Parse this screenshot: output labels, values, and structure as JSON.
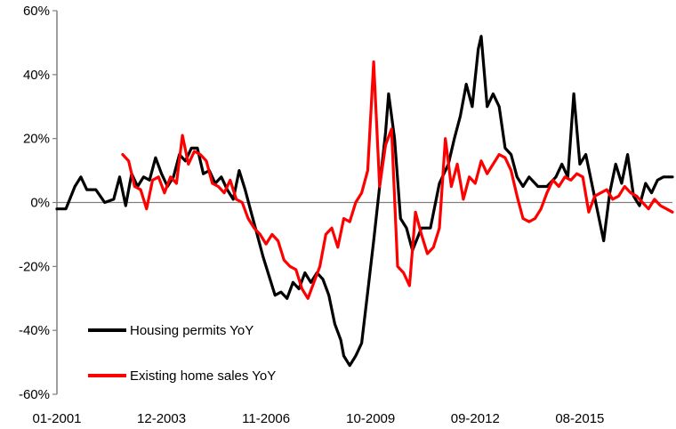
{
  "chart_data": {
    "type": "line",
    "title": "",
    "xlabel": "",
    "ylabel": "",
    "ylim": [
      -60,
      60
    ],
    "y_ticks": [
      60,
      40,
      20,
      0,
      -20,
      -40,
      -60
    ],
    "y_tick_labels": [
      "60%",
      "40%",
      "20%",
      "0%",
      "-20%",
      "-40%",
      "-60%"
    ],
    "x_ticks": [
      "2001-01",
      "2003-12",
      "2006-11",
      "2009-10",
      "2012-09",
      "2015-08"
    ],
    "x_tick_labels": [
      "01-2001",
      "12-2003",
      "11-2006",
      "10-2009",
      "09-2012",
      "08-2015"
    ],
    "x_range": [
      "2001-01",
      "2018-03"
    ],
    "grid": false,
    "legend": {
      "placement": "bottom-left"
    },
    "series": [
      {
        "name": "Housing permits YoY",
        "color": "#000000",
        "points": [
          [
            "2001-01",
            -2
          ],
          [
            "2001-04",
            -2
          ],
          [
            "2001-07",
            5
          ],
          [
            "2001-09",
            8
          ],
          [
            "2001-11",
            4
          ],
          [
            "2002-02",
            4
          ],
          [
            "2002-05",
            0
          ],
          [
            "2002-08",
            1
          ],
          [
            "2002-10",
            8
          ],
          [
            "2002-12",
            -1
          ],
          [
            "2003-02",
            9
          ],
          [
            "2003-04",
            5
          ],
          [
            "2003-06",
            8
          ],
          [
            "2003-08",
            7
          ],
          [
            "2003-10",
            14
          ],
          [
            "2003-12",
            9
          ],
          [
            "2004-02",
            5
          ],
          [
            "2004-04",
            8
          ],
          [
            "2004-06",
            15
          ],
          [
            "2004-08",
            13
          ],
          [
            "2004-10",
            17
          ],
          [
            "2004-12",
            17
          ],
          [
            "2005-02",
            9
          ],
          [
            "2005-04",
            10
          ],
          [
            "2005-06",
            6
          ],
          [
            "2005-08",
            8
          ],
          [
            "2005-10",
            4
          ],
          [
            "2005-12",
            1
          ],
          [
            "2006-02",
            10
          ],
          [
            "2006-04",
            4
          ],
          [
            "2006-06",
            -3
          ],
          [
            "2006-08",
            -10
          ],
          [
            "2006-10",
            -17
          ],
          [
            "2006-12",
            -23
          ],
          [
            "2007-02",
            -29
          ],
          [
            "2007-04",
            -28
          ],
          [
            "2007-06",
            -30
          ],
          [
            "2007-08",
            -25
          ],
          [
            "2007-10",
            -27
          ],
          [
            "2007-12",
            -22
          ],
          [
            "2008-02",
            -25
          ],
          [
            "2008-04",
            -22
          ],
          [
            "2008-06",
            -24
          ],
          [
            "2008-08",
            -29
          ],
          [
            "2008-10",
            -38
          ],
          [
            "2008-12",
            -43
          ],
          [
            "2009-01",
            -48
          ],
          [
            "2009-03",
            -51
          ],
          [
            "2009-05",
            -48
          ],
          [
            "2009-07",
            -44
          ],
          [
            "2009-09",
            -28
          ],
          [
            "2009-11",
            -12
          ],
          [
            "2010-01",
            5
          ],
          [
            "2010-03",
            22
          ],
          [
            "2010-04",
            34
          ],
          [
            "2010-06",
            20
          ],
          [
            "2010-08",
            -5
          ],
          [
            "2010-10",
            -8
          ],
          [
            "2010-12",
            -15
          ],
          [
            "2011-03",
            -8
          ],
          [
            "2011-06",
            -8
          ],
          [
            "2011-09",
            6
          ],
          [
            "2011-12",
            12
          ],
          [
            "2012-02",
            20
          ],
          [
            "2012-04",
            27
          ],
          [
            "2012-06",
            37
          ],
          [
            "2012-08",
            30
          ],
          [
            "2012-10",
            48
          ],
          [
            "2012-11",
            52
          ],
          [
            "2013-01",
            30
          ],
          [
            "2013-03",
            34
          ],
          [
            "2013-05",
            30
          ],
          [
            "2013-07",
            17
          ],
          [
            "2013-09",
            15
          ],
          [
            "2013-11",
            8
          ],
          [
            "2014-01",
            5
          ],
          [
            "2014-03",
            8
          ],
          [
            "2014-06",
            5
          ],
          [
            "2014-09",
            5
          ],
          [
            "2014-12",
            8
          ],
          [
            "2015-02",
            12
          ],
          [
            "2015-04",
            8
          ],
          [
            "2015-06",
            34
          ],
          [
            "2015-08",
            12
          ],
          [
            "2015-10",
            15
          ],
          [
            "2015-12",
            6
          ],
          [
            "2016-02",
            -3
          ],
          [
            "2016-04",
            -12
          ],
          [
            "2016-06",
            3
          ],
          [
            "2016-08",
            12
          ],
          [
            "2016-10",
            6
          ],
          [
            "2016-12",
            15
          ],
          [
            "2017-02",
            2
          ],
          [
            "2017-04",
            -1
          ],
          [
            "2017-06",
            6
          ],
          [
            "2017-08",
            3
          ],
          [
            "2017-10",
            7
          ],
          [
            "2017-12",
            8
          ],
          [
            "2018-03",
            8
          ]
        ]
      },
      {
        "name": "Existing home sales YoY",
        "color": "#ff0000",
        "points": [
          [
            "2002-11",
            15
          ],
          [
            "2003-01",
            13
          ],
          [
            "2003-03",
            5
          ],
          [
            "2003-05",
            4
          ],
          [
            "2003-07",
            -2
          ],
          [
            "2003-09",
            7
          ],
          [
            "2003-11",
            8
          ],
          [
            "2004-01",
            3
          ],
          [
            "2004-03",
            8
          ],
          [
            "2004-05",
            6
          ],
          [
            "2004-07",
            21
          ],
          [
            "2004-09",
            12
          ],
          [
            "2004-11",
            16
          ],
          [
            "2005-01",
            15
          ],
          [
            "2005-03",
            13
          ],
          [
            "2005-05",
            6
          ],
          [
            "2005-07",
            5
          ],
          [
            "2005-09",
            3
          ],
          [
            "2005-11",
            7
          ],
          [
            "2006-01",
            1
          ],
          [
            "2006-03",
            0
          ],
          [
            "2006-05",
            -5
          ],
          [
            "2006-07",
            -8
          ],
          [
            "2006-09",
            -10
          ],
          [
            "2006-11",
            -13
          ],
          [
            "2007-01",
            -10
          ],
          [
            "2007-03",
            -12
          ],
          [
            "2007-05",
            -18
          ],
          [
            "2007-07",
            -20
          ],
          [
            "2007-09",
            -21
          ],
          [
            "2007-11",
            -27
          ],
          [
            "2008-01",
            -30
          ],
          [
            "2008-03",
            -25
          ],
          [
            "2008-05",
            -20
          ],
          [
            "2008-07",
            -10
          ],
          [
            "2008-09",
            -8
          ],
          [
            "2008-11",
            -14
          ],
          [
            "2009-01",
            -5
          ],
          [
            "2009-03",
            -6
          ],
          [
            "2009-05",
            0
          ],
          [
            "2009-07",
            3
          ],
          [
            "2009-09",
            10
          ],
          [
            "2009-11",
            44
          ],
          [
            "2010-01",
            5
          ],
          [
            "2010-03",
            18
          ],
          [
            "2010-05",
            23
          ],
          [
            "2010-07",
            -20
          ],
          [
            "2010-09",
            -22
          ],
          [
            "2010-11",
            -26
          ],
          [
            "2011-01",
            -3
          ],
          [
            "2011-03",
            -10
          ],
          [
            "2011-05",
            -16
          ],
          [
            "2011-07",
            -14
          ],
          [
            "2011-09",
            -8
          ],
          [
            "2011-11",
            20
          ],
          [
            "2012-01",
            5
          ],
          [
            "2012-03",
            12
          ],
          [
            "2012-05",
            1
          ],
          [
            "2012-07",
            8
          ],
          [
            "2012-09",
            6
          ],
          [
            "2012-11",
            13
          ],
          [
            "2013-01",
            9
          ],
          [
            "2013-03",
            12
          ],
          [
            "2013-05",
            15
          ],
          [
            "2013-07",
            14
          ],
          [
            "2013-09",
            10
          ],
          [
            "2013-11",
            2
          ],
          [
            "2014-01",
            -5
          ],
          [
            "2014-03",
            -6
          ],
          [
            "2014-05",
            -5
          ],
          [
            "2014-07",
            -2
          ],
          [
            "2014-09",
            3
          ],
          [
            "2014-11",
            7
          ],
          [
            "2015-01",
            5
          ],
          [
            "2015-03",
            8
          ],
          [
            "2015-05",
            7
          ],
          [
            "2015-07",
            9
          ],
          [
            "2015-09",
            8
          ],
          [
            "2015-11",
            -3
          ],
          [
            "2016-01",
            2
          ],
          [
            "2016-03",
            3
          ],
          [
            "2016-05",
            4
          ],
          [
            "2016-07",
            1
          ],
          [
            "2016-09",
            2
          ],
          [
            "2016-11",
            5
          ],
          [
            "2017-01",
            3
          ],
          [
            "2017-03",
            2
          ],
          [
            "2017-05",
            0
          ],
          [
            "2017-07",
            -2
          ],
          [
            "2017-09",
            1
          ],
          [
            "2017-11",
            -1
          ],
          [
            "2018-01",
            -2
          ],
          [
            "2018-03",
            -3
          ]
        ]
      }
    ]
  }
}
